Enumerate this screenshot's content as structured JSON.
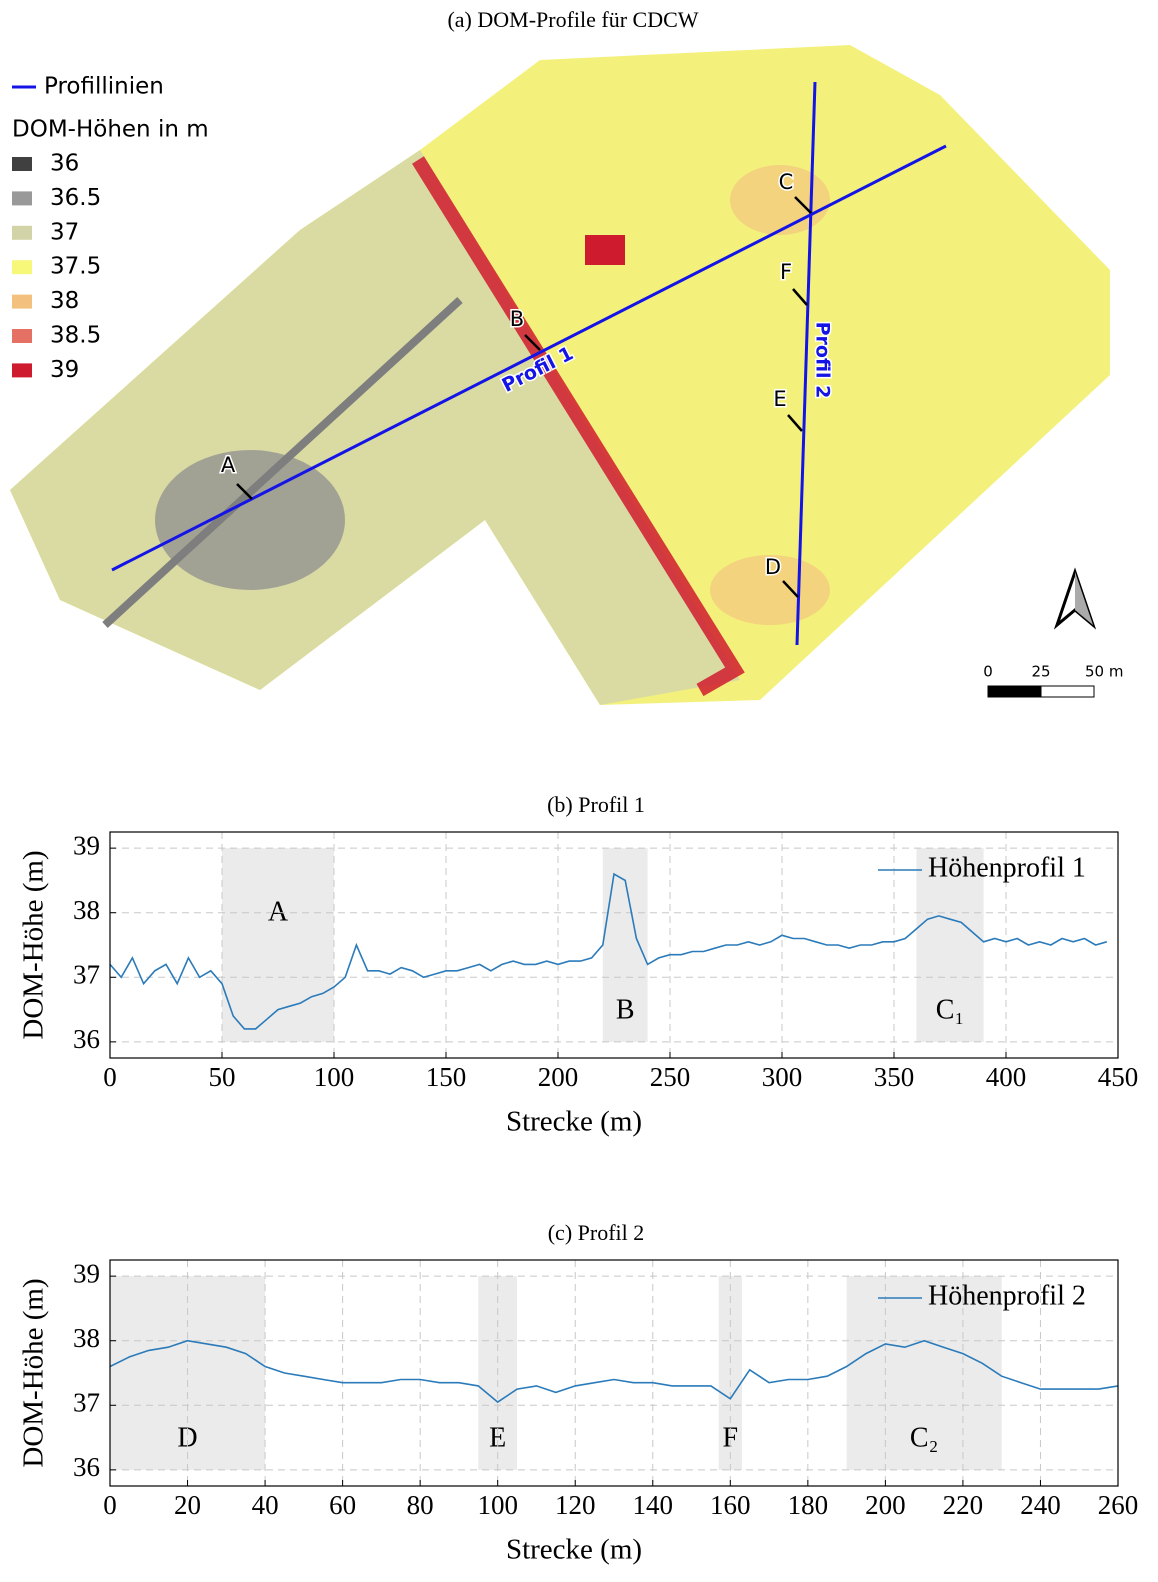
{
  "map": {
    "title": "(a) DOM-Profile für CDCW",
    "line_legend": "Profillinien",
    "legend_title": "DOM-Höhen in m",
    "legend": [
      {
        "label": "36",
        "color": "#404040"
      },
      {
        "label": "36.5",
        "color": "#999999"
      },
      {
        "label": "37",
        "color": "#d2d4a8"
      },
      {
        "label": "37.5",
        "color": "#f7f77a"
      },
      {
        "label": "38",
        "color": "#f4c07e"
      },
      {
        "label": "38.5",
        "color": "#e47164"
      },
      {
        "label": "39",
        "color": "#cf1b2e"
      }
    ],
    "points": [
      "A",
      "B",
      "C",
      "D",
      "E",
      "F"
    ],
    "profiles": [
      "Profil 1",
      "Profil 2"
    ],
    "scale": [
      "0",
      "25",
      "50 m"
    ]
  },
  "chart_data": [
    {
      "type": "line",
      "title": "(b) Profil 1",
      "x_label": "Strecke (m)",
      "y_label": "DOM-Höhe (m)",
      "xlim": [
        0,
        450
      ],
      "ylim": [
        35.75,
        39.25
      ],
      "xticks": [
        0,
        50,
        100,
        150,
        200,
        250,
        300,
        350,
        400,
        450
      ],
      "yticks": [
        36,
        37,
        38,
        39
      ],
      "grid": true,
      "legend": "upper right",
      "x": [
        0,
        5,
        10,
        15,
        20,
        25,
        30,
        35,
        40,
        45,
        50,
        55,
        60,
        65,
        70,
        75,
        80,
        85,
        90,
        95,
        100,
        105,
        110,
        115,
        120,
        125,
        130,
        135,
        140,
        145,
        150,
        155,
        160,
        165,
        170,
        175,
        180,
        185,
        190,
        195,
        200,
        205,
        210,
        215,
        220,
        225,
        230,
        235,
        240,
        245,
        250,
        255,
        260,
        265,
        270,
        275,
        280,
        285,
        290,
        295,
        300,
        305,
        310,
        315,
        320,
        325,
        330,
        335,
        340,
        345,
        350,
        355,
        360,
        365,
        370,
        375,
        380,
        385,
        390,
        395,
        400,
        405,
        410,
        415,
        420,
        425,
        430,
        435,
        440,
        445
      ],
      "series": [
        {
          "name": "Höhenprofil 1",
          "color": "#2b7bba",
          "values": [
            37.2,
            37.0,
            37.3,
            36.9,
            37.1,
            37.2,
            36.9,
            37.3,
            37.0,
            37.1,
            36.9,
            36.4,
            36.2,
            36.2,
            36.35,
            36.5,
            36.55,
            36.6,
            36.7,
            36.75,
            36.85,
            37.0,
            37.5,
            37.1,
            37.1,
            37.05,
            37.15,
            37.1,
            37.0,
            37.05,
            37.1,
            37.1,
            37.15,
            37.2,
            37.1,
            37.2,
            37.25,
            37.2,
            37.2,
            37.25,
            37.2,
            37.25,
            37.25,
            37.3,
            37.5,
            38.6,
            38.5,
            37.6,
            37.2,
            37.3,
            37.35,
            37.35,
            37.4,
            37.4,
            37.45,
            37.5,
            37.5,
            37.55,
            37.5,
            37.55,
            37.65,
            37.6,
            37.6,
            37.55,
            37.5,
            37.5,
            37.45,
            37.5,
            37.5,
            37.55,
            37.55,
            37.6,
            37.75,
            37.9,
            37.95,
            37.9,
            37.85,
            37.7,
            37.55,
            37.6,
            37.55,
            37.6,
            37.5,
            37.55,
            37.5,
            37.6,
            37.55,
            37.6,
            37.5,
            37.55
          ]
        }
      ],
      "regions": [
        {
          "xlim": [
            50,
            100
          ],
          "label": "A"
        },
        {
          "xlim": [
            220,
            240
          ],
          "label": "B"
        },
        {
          "xlim": [
            360,
            390
          ],
          "label": "C₁"
        }
      ]
    },
    {
      "type": "line",
      "title": "(c) Profil 2",
      "x_label": "Strecke (m)",
      "y_label": "DOM-Höhe (m)",
      "xlim": [
        0,
        260
      ],
      "ylim": [
        35.75,
        39.25
      ],
      "xticks": [
        0,
        20,
        40,
        60,
        80,
        100,
        120,
        140,
        160,
        180,
        200,
        220,
        240,
        260
      ],
      "yticks": [
        36,
        37,
        38,
        39
      ],
      "grid": true,
      "legend": "upper right",
      "x": [
        0,
        5,
        10,
        15,
        20,
        25,
        30,
        35,
        40,
        45,
        50,
        55,
        60,
        65,
        70,
        75,
        80,
        85,
        90,
        95,
        100,
        105,
        110,
        115,
        120,
        125,
        130,
        135,
        140,
        145,
        150,
        155,
        160,
        165,
        170,
        175,
        180,
        185,
        190,
        195,
        200,
        205,
        210,
        215,
        220,
        225,
        230,
        235,
        240,
        245,
        250,
        255,
        260
      ],
      "series": [
        {
          "name": "Höhenprofil 2",
          "color": "#2b7bba",
          "values": [
            37.6,
            37.75,
            37.85,
            37.9,
            38.0,
            37.95,
            37.9,
            37.8,
            37.6,
            37.5,
            37.45,
            37.4,
            37.35,
            37.35,
            37.35,
            37.4,
            37.4,
            37.35,
            37.35,
            37.3,
            37.05,
            37.25,
            37.3,
            37.2,
            37.3,
            37.35,
            37.4,
            37.35,
            37.35,
            37.3,
            37.3,
            37.3,
            37.1,
            37.55,
            37.35,
            37.4,
            37.4,
            37.45,
            37.6,
            37.8,
            37.95,
            37.9,
            38.0,
            37.9,
            37.8,
            37.65,
            37.45,
            37.35,
            37.25,
            37.25,
            37.25,
            37.25,
            37.3
          ]
        }
      ],
      "regions": [
        {
          "xlim": [
            0,
            40
          ],
          "label": "D"
        },
        {
          "xlim": [
            95,
            105
          ],
          "label": "E"
        },
        {
          "xlim": [
            157,
            163
          ],
          "label": "F"
        },
        {
          "xlim": [
            190,
            230
          ],
          "label": "C₂"
        }
      ]
    }
  ]
}
